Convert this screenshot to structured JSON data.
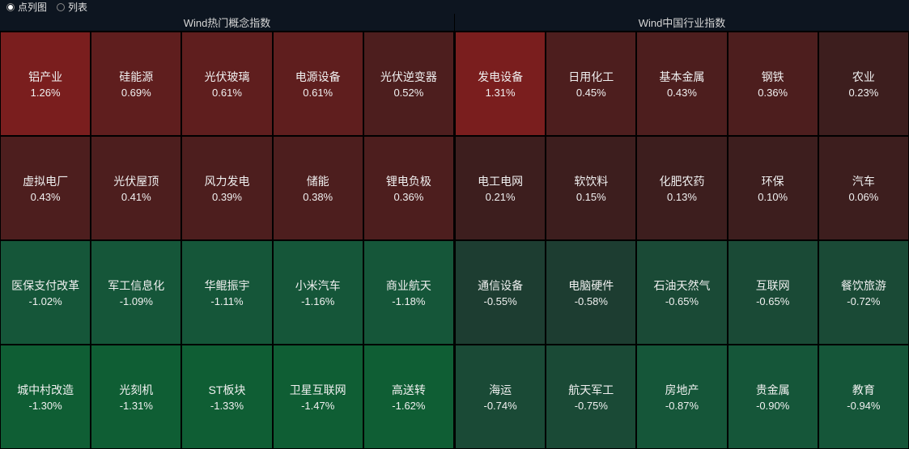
{
  "colors": {
    "background": "#0d1520",
    "text": "#f0f0f0",
    "header_text": "#d5d5d5",
    "cell_border": "#000000"
  },
  "cell_colors": {
    "up_strong": "#7a1e1e",
    "up_med": "#5f1e1e",
    "up_weak": "#4d1e1e",
    "up_faint": "#3d1e1e",
    "down_strong": "#0f5e34",
    "down_med": "#155639",
    "down_weak": "#1a4a36",
    "down_faint": "#1d3d31"
  },
  "layout": {
    "columns": 5,
    "rows": 4
  },
  "toolbar": {
    "item1": "点列图",
    "item2": "列表"
  },
  "panels": [
    {
      "title": "Wind热门概念指数",
      "cells": [
        {
          "label": "铝产业",
          "change": 1.26,
          "value": "1.26%",
          "color_key": "up_strong"
        },
        {
          "label": "硅能源",
          "change": 0.69,
          "value": "0.69%",
          "color_key": "up_med"
        },
        {
          "label": "光伏玻璃",
          "change": 0.61,
          "value": "0.61%",
          "color_key": "up_med"
        },
        {
          "label": "电源设备",
          "change": 0.61,
          "value": "0.61%",
          "color_key": "up_med"
        },
        {
          "label": "光伏逆变器",
          "change": 0.52,
          "value": "0.52%",
          "color_key": "up_weak"
        },
        {
          "label": "虚拟电厂",
          "change": 0.43,
          "value": "0.43%",
          "color_key": "up_weak"
        },
        {
          "label": "光伏屋顶",
          "change": 0.41,
          "value": "0.41%",
          "color_key": "up_weak"
        },
        {
          "label": "风力发电",
          "change": 0.39,
          "value": "0.39%",
          "color_key": "up_weak"
        },
        {
          "label": "储能",
          "change": 0.38,
          "value": "0.38%",
          "color_key": "up_weak"
        },
        {
          "label": "锂电负极",
          "change": 0.36,
          "value": "0.36%",
          "color_key": "up_weak"
        },
        {
          "label": "医保支付改革",
          "change": -1.02,
          "value": "-1.02%",
          "color_key": "down_med"
        },
        {
          "label": "军工信息化",
          "change": -1.09,
          "value": "-1.09%",
          "color_key": "down_med"
        },
        {
          "label": "华鲲振宇",
          "change": -1.11,
          "value": "-1.11%",
          "color_key": "down_med"
        },
        {
          "label": "小米汽车",
          "change": -1.16,
          "value": "-1.16%",
          "color_key": "down_med"
        },
        {
          "label": "商业航天",
          "change": -1.18,
          "value": "-1.18%",
          "color_key": "down_med"
        },
        {
          "label": "城中村改造",
          "change": -1.3,
          "value": "-1.30%",
          "color_key": "down_strong"
        },
        {
          "label": "光刻机",
          "change": -1.31,
          "value": "-1.31%",
          "color_key": "down_strong"
        },
        {
          "label": "ST板块",
          "change": -1.33,
          "value": "-1.33%",
          "color_key": "down_strong"
        },
        {
          "label": "卫星互联网",
          "change": -1.47,
          "value": "-1.47%",
          "color_key": "down_strong"
        },
        {
          "label": "高送转",
          "change": -1.62,
          "value": "-1.62%",
          "color_key": "down_strong"
        }
      ]
    },
    {
      "title": "Wind中国行业指数",
      "cells": [
        {
          "label": "发电设备",
          "change": 1.31,
          "value": "1.31%",
          "color_key": "up_strong"
        },
        {
          "label": "日用化工",
          "change": 0.45,
          "value": "0.45%",
          "color_key": "up_weak"
        },
        {
          "label": "基本金属",
          "change": 0.43,
          "value": "0.43%",
          "color_key": "up_weak"
        },
        {
          "label": "钢铁",
          "change": 0.36,
          "value": "0.36%",
          "color_key": "up_weak"
        },
        {
          "label": "农业",
          "change": 0.23,
          "value": "0.23%",
          "color_key": "up_faint"
        },
        {
          "label": "电工电网",
          "change": 0.21,
          "value": "0.21%",
          "color_key": "up_faint"
        },
        {
          "label": "软饮料",
          "change": 0.15,
          "value": "0.15%",
          "color_key": "up_faint"
        },
        {
          "label": "化肥农药",
          "change": 0.13,
          "value": "0.13%",
          "color_key": "up_faint"
        },
        {
          "label": "环保",
          "change": 0.1,
          "value": "0.10%",
          "color_key": "up_faint"
        },
        {
          "label": "汽车",
          "change": 0.06,
          "value": "0.06%",
          "color_key": "up_faint"
        },
        {
          "label": "通信设备",
          "change": -0.55,
          "value": "-0.55%",
          "color_key": "down_faint"
        },
        {
          "label": "电脑硬件",
          "change": -0.58,
          "value": "-0.58%",
          "color_key": "down_faint"
        },
        {
          "label": "石油天然气",
          "change": -0.65,
          "value": "-0.65%",
          "color_key": "down_weak"
        },
        {
          "label": "互联网",
          "change": -0.65,
          "value": "-0.65%",
          "color_key": "down_weak"
        },
        {
          "label": "餐饮旅游",
          "change": -0.72,
          "value": "-0.72%",
          "color_key": "down_weak"
        },
        {
          "label": "海运",
          "change": -0.74,
          "value": "-0.74%",
          "color_key": "down_weak"
        },
        {
          "label": "航天军工",
          "change": -0.75,
          "value": "-0.75%",
          "color_key": "down_weak"
        },
        {
          "label": "房地产",
          "change": -0.87,
          "value": "-0.87%",
          "color_key": "down_med"
        },
        {
          "label": "贵金属",
          "change": -0.9,
          "value": "-0.90%",
          "color_key": "down_med"
        },
        {
          "label": "教育",
          "change": -0.94,
          "value": "-0.94%",
          "color_key": "down_med"
        }
      ]
    }
  ]
}
